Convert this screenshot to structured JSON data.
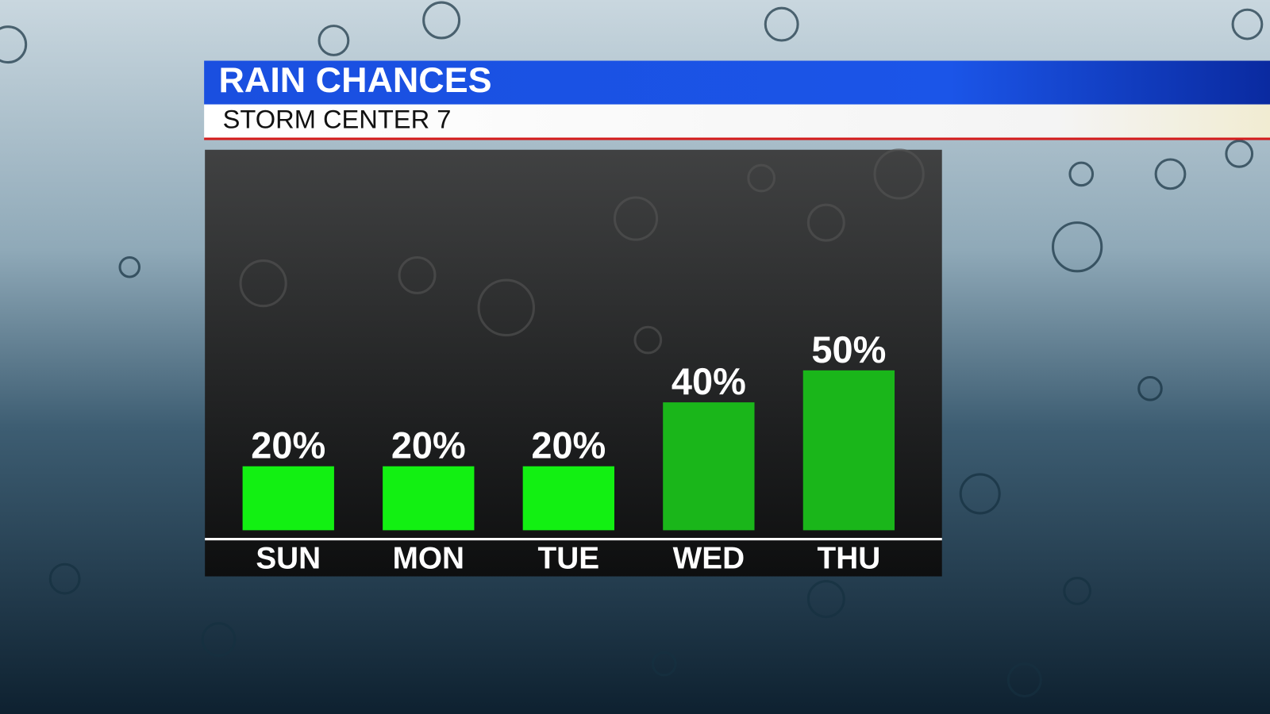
{
  "chart_data": {
    "type": "bar",
    "title": "RAIN CHANCES",
    "subtitle": "STORM CENTER 7",
    "categories": [
      "SUN",
      "MON",
      "TUE",
      "WED",
      "THU"
    ],
    "values": [
      20,
      20,
      20,
      40,
      50
    ],
    "value_labels": [
      "20%",
      "20%",
      "20%",
      "40%",
      "50%"
    ],
    "colors": [
      "#12f012",
      "#12f012",
      "#12f012",
      "#1ab61a",
      "#1ab61a"
    ]
  }
}
